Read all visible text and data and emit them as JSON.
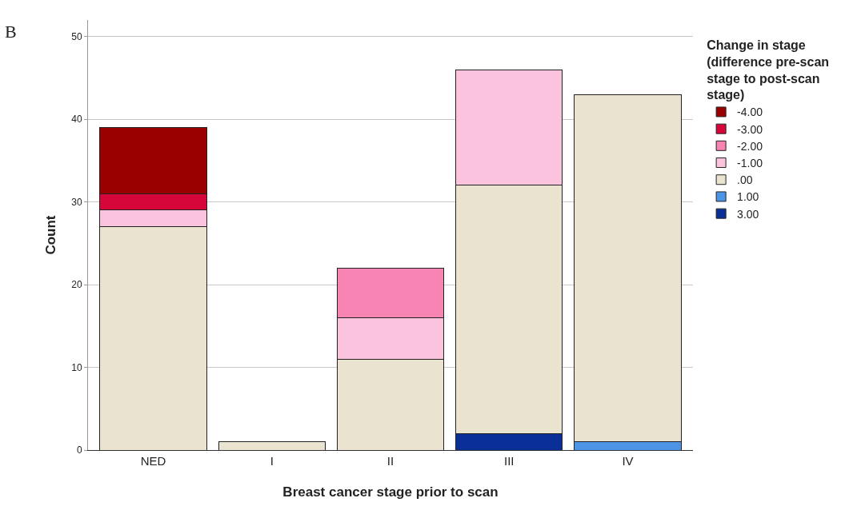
{
  "chart_data": {
    "type": "bar",
    "stacked": true,
    "xlabel": "Breast cancer stage prior to scan",
    "ylabel": "Count",
    "legend_title": "Change in stage (difference pre-scan stage to post-scan stage)",
    "annotations": [
      "B"
    ],
    "categories": [
      "NED",
      "I",
      "II",
      "III",
      "IV"
    ],
    "ylim": [
      0,
      52
    ],
    "yticks": [
      0,
      10,
      20,
      30,
      40,
      50
    ],
    "grid": "y",
    "legend": "right",
    "series": [
      {
        "name": "3.00",
        "color": "#0a2f96",
        "values": [
          null,
          null,
          null,
          2,
          null
        ]
      },
      {
        "name": "1.00",
        "color": "#4d94e6",
        "values": [
          null,
          null,
          null,
          null,
          1
        ]
      },
      {
        "name": ".00",
        "color": "#e9e3cf",
        "values": [
          27,
          1,
          11,
          30,
          42
        ]
      },
      {
        "name": "-1.00",
        "color": "#fbc3de",
        "values": [
          2,
          null,
          5,
          14,
          null
        ]
      },
      {
        "name": "-2.00",
        "color": "#f784b2",
        "values": [
          null,
          null,
          6,
          null,
          null
        ]
      },
      {
        "name": "-3.00",
        "color": "#d6063a",
        "values": [
          2,
          null,
          null,
          null,
          null
        ]
      },
      {
        "name": "-4.00",
        "color": "#990000",
        "values": [
          8,
          null,
          null,
          null,
          null
        ]
      }
    ]
  }
}
